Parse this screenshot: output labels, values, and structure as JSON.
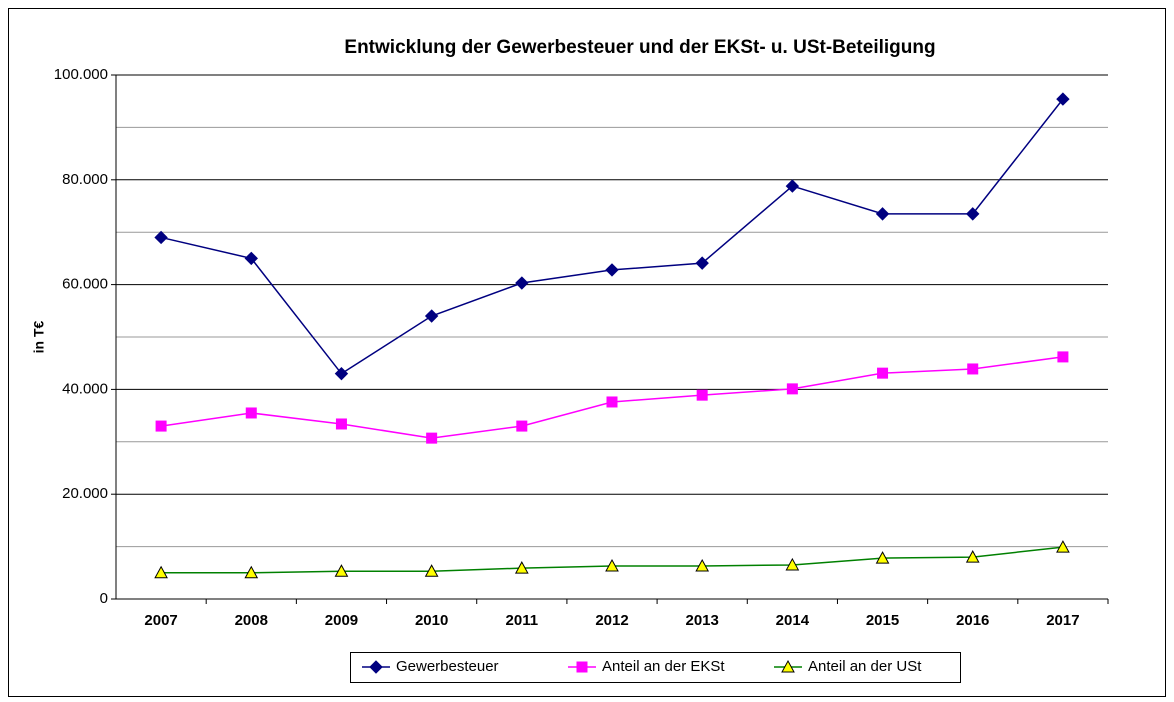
{
  "chart_data": {
    "type": "line",
    "title": "Entwicklung der Gewerbesteuer und der EKSt- u. USt-Beteiligung",
    "y_label": "in T€",
    "categories": [
      "2007",
      "2008",
      "2009",
      "2010",
      "2011",
      "2012",
      "2013",
      "2014",
      "2015",
      "2016",
      "2017"
    ],
    "series": [
      {
        "name": "Gewerbesteuer",
        "color": "#000080",
        "marker": "diamond",
        "values": [
          69000,
          65000,
          43000,
          54000,
          60300,
          62800,
          64100,
          78800,
          73500,
          73500,
          95400
        ]
      },
      {
        "name": "Anteil an der EKSt",
        "color": "#ff00ff",
        "marker": "square",
        "values": [
          33000,
          35500,
          33400,
          30700,
          33000,
          37600,
          38900,
          40100,
          43100,
          43900,
          46200
        ]
      },
      {
        "name": "Anteil an der USt",
        "color": "#008000",
        "marker": "triangle",
        "marker_fill": "#ffff00",
        "values": [
          5000,
          5000,
          5300,
          5300,
          5900,
          6300,
          6300,
          6500,
          7800,
          8000,
          9900
        ]
      }
    ],
    "ylim": [
      0,
      100000
    ],
    "yticks": [
      0,
      {
        "value": 20000,
        "label": "20.000"
      },
      {
        "value": 40000,
        "label": "40.000"
      },
      {
        "value": 60000,
        "label": "60.000"
      },
      {
        "value": 80000,
        "label": "80.000"
      },
      {
        "value": 100000,
        "label": "100.000"
      }
    ],
    "minor_yticks": [
      10000,
      30000,
      50000,
      70000,
      90000
    ],
    "grid": true,
    "legend": "bottom"
  }
}
